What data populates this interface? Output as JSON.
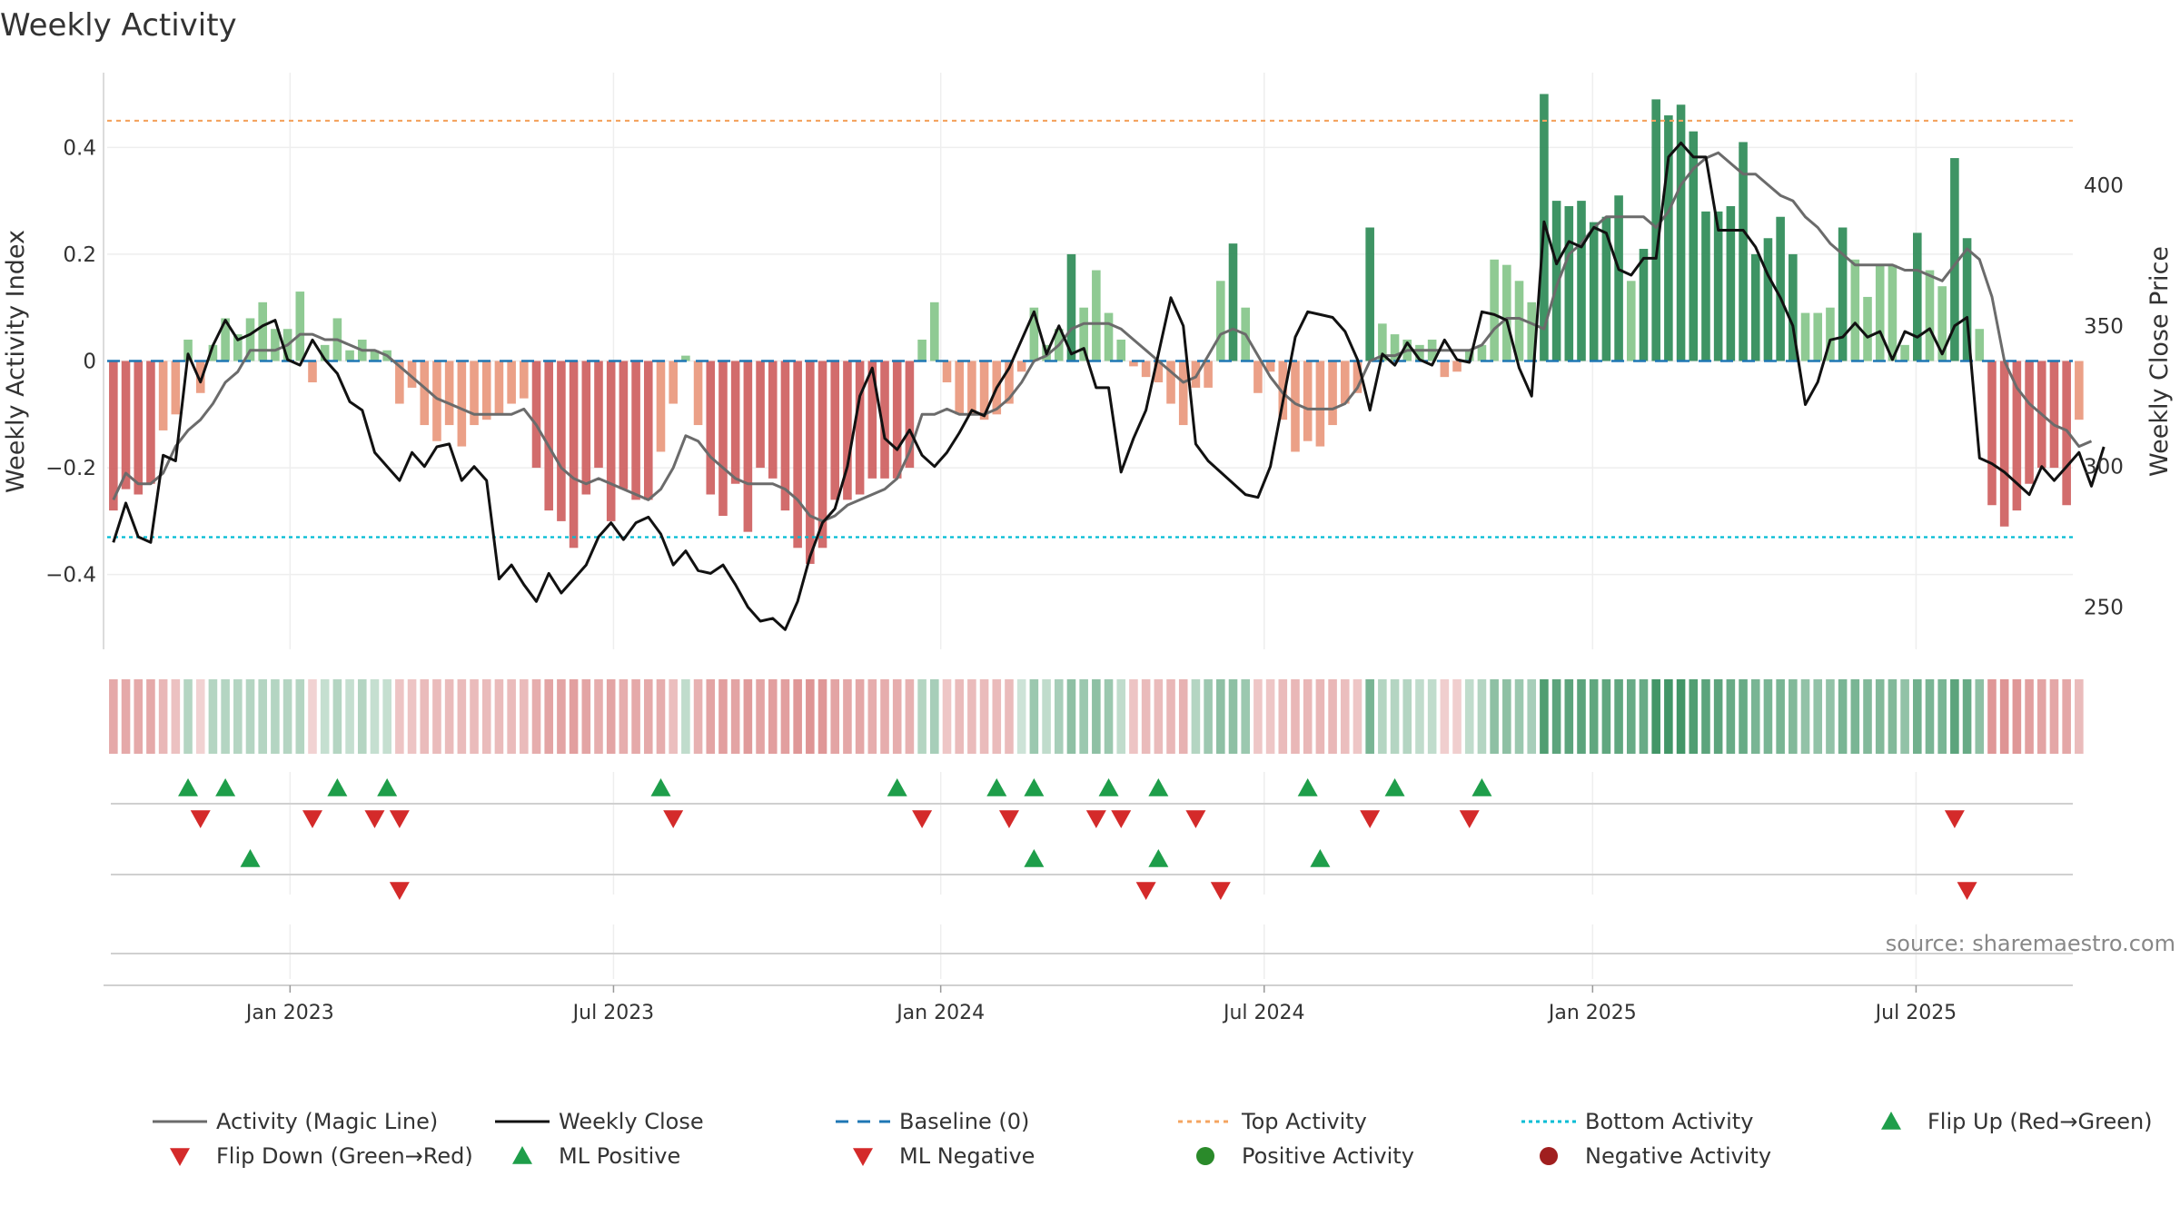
{
  "chart_data": {
    "type": "bar+line",
    "title": "Weekly Activity",
    "ylabel_left": "Weekly Activity Index",
    "ylabel_right": "Weekly Close Price",
    "source": "source: sharemaestro.com",
    "left_ylim": [
      -0.54,
      0.54
    ],
    "left_ticks": [
      {
        "v": 0.4,
        "label": "0.4"
      },
      {
        "v": 0.2,
        "label": "0.2"
      },
      {
        "v": 0,
        "label": "0"
      },
      {
        "v": -0.2,
        "label": "−0.2"
      },
      {
        "v": -0.4,
        "label": "−0.4"
      }
    ],
    "right_ylim": [
      235,
      440
    ],
    "right_ticks": [
      {
        "v": 400,
        "label": "400"
      },
      {
        "v": 350,
        "label": "350"
      },
      {
        "v": 300,
        "label": "300"
      },
      {
        "v": 250,
        "label": "250"
      }
    ],
    "x_range": [
      0,
      158
    ],
    "x_ticks": [
      {
        "week": 14.7,
        "label": "Jan 2023"
      },
      {
        "week": 40.7,
        "label": "Jul 2023"
      },
      {
        "week": 67,
        "label": "Jan 2024"
      },
      {
        "week": 93,
        "label": "Jul 2024"
      },
      {
        "week": 119.4,
        "label": "Jan 2025"
      },
      {
        "week": 145.4,
        "label": "Jul 2025"
      }
    ],
    "top_activity": 0.45,
    "bottom_activity": -0.33,
    "baseline": 0,
    "activity": [
      -0.28,
      -0.24,
      -0.25,
      -0.23,
      -0.13,
      -0.1,
      0.04,
      -0.06,
      0.03,
      0.08,
      0.05,
      0.08,
      0.11,
      0.06,
      0.06,
      0.13,
      -0.04,
      0.03,
      0.08,
      0.02,
      0.04,
      0.02,
      0.02,
      -0.08,
      -0.05,
      -0.12,
      -0.15,
      -0.12,
      -0.16,
      -0.12,
      -0.11,
      -0.1,
      -0.08,
      -0.07,
      -0.2,
      -0.28,
      -0.3,
      -0.35,
      -0.25,
      -0.2,
      -0.3,
      -0.24,
      -0.26,
      -0.26,
      -0.17,
      -0.08,
      0.01,
      -0.12,
      -0.25,
      -0.29,
      -0.23,
      -0.32,
      -0.2,
      -0.22,
      -0.28,
      -0.35,
      -0.38,
      -0.35,
      -0.26,
      -0.26,
      -0.25,
      -0.22,
      -0.22,
      -0.22,
      -0.2,
      0.04,
      0.11,
      -0.04,
      -0.1,
      -0.1,
      -0.11,
      -0.1,
      -0.08,
      -0.02,
      0.1,
      0.03,
      0.06,
      0.2,
      0.1,
      0.17,
      0.09,
      0.04,
      -0.01,
      -0.03,
      -0.04,
      -0.08,
      -0.12,
      -0.05,
      -0.05,
      0.15,
      0.22,
      0.1,
      -0.06,
      -0.02,
      -0.11,
      -0.17,
      -0.15,
      -0.16,
      -0.12,
      -0.08,
      -0.06,
      0.25,
      0.07,
      0.05,
      0.04,
      0.03,
      0.04,
      -0.03,
      -0.02,
      0.02,
      0.03,
      0.19,
      0.18,
      0.15,
      0.11,
      0.5,
      0.3,
      0.29,
      0.3,
      0.26,
      0.27,
      0.31,
      0.15,
      0.21,
      0.49,
      0.46,
      0.48,
      0.43,
      0.28,
      0.28,
      0.29,
      0.41,
      0.2,
      0.23,
      0.27,
      0.2,
      0.09,
      0.09,
      0.1,
      0.25,
      0.19,
      0.12,
      0.18,
      0.18,
      0.03,
      0.24,
      0.17,
      0.14,
      0.38,
      0.23,
      0.06,
      -0.27,
      -0.31,
      -0.28,
      -0.23,
      -0.2,
      -0.2,
      -0.27,
      -0.11
    ],
    "magic_line": [
      -0.26,
      -0.21,
      -0.23,
      -0.23,
      -0.21,
      -0.16,
      -0.13,
      -0.11,
      -0.08,
      -0.04,
      -0.02,
      0.02,
      0.02,
      0.02,
      0.03,
      0.05,
      0.05,
      0.04,
      0.04,
      0.03,
      0.02,
      0.02,
      0.01,
      -0.01,
      -0.03,
      -0.05,
      -0.07,
      -0.08,
      -0.09,
      -0.1,
      -0.1,
      -0.1,
      -0.1,
      -0.09,
      -0.12,
      -0.16,
      -0.2,
      -0.22,
      -0.23,
      -0.22,
      -0.23,
      -0.24,
      -0.25,
      -0.26,
      -0.24,
      -0.2,
      -0.14,
      -0.15,
      -0.18,
      -0.2,
      -0.22,
      -0.23,
      -0.23,
      -0.23,
      -0.24,
      -0.26,
      -0.29,
      -0.3,
      -0.29,
      -0.27,
      -0.26,
      -0.25,
      -0.24,
      -0.22,
      -0.17,
      -0.1,
      -0.1,
      -0.09,
      -0.1,
      -0.1,
      -0.1,
      -0.09,
      -0.07,
      -0.04,
      0.0,
      0.01,
      0.03,
      0.06,
      0.07,
      0.07,
      0.07,
      0.06,
      0.04,
      0.02,
      0.0,
      -0.02,
      -0.04,
      -0.03,
      0.01,
      0.05,
      0.06,
      0.05,
      0.01,
      -0.03,
      -0.06,
      -0.08,
      -0.09,
      -0.09,
      -0.09,
      -0.08,
      -0.05,
      0.0,
      0.01,
      0.01,
      0.02,
      0.02,
      0.02,
      0.02,
      0.02,
      0.02,
      0.03,
      0.06,
      0.08,
      0.08,
      0.07,
      0.06,
      0.14,
      0.2,
      0.22,
      0.25,
      0.27,
      0.27,
      0.27,
      0.27,
      0.25,
      0.28,
      0.33,
      0.36,
      0.38,
      0.39,
      0.37,
      0.35,
      0.35,
      0.33,
      0.31,
      0.3,
      0.27,
      0.25,
      0.22,
      0.2,
      0.18,
      0.18,
      0.18,
      0.18,
      0.17,
      0.17,
      0.16,
      0.15,
      0.18,
      0.21,
      0.19,
      0.12,
      0.0,
      -0.05,
      -0.08,
      -0.1,
      -0.12,
      -0.13,
      -0.16,
      -0.15
    ],
    "weekly_close": [
      273,
      287,
      275,
      273,
      304,
      302,
      340,
      330,
      343,
      352,
      345,
      347,
      350,
      352,
      338,
      336,
      345,
      338,
      333,
      323,
      320,
      305,
      300,
      295,
      305,
      300,
      307,
      308,
      295,
      300,
      295,
      260,
      265,
      258,
      252,
      262,
      255,
      260,
      265,
      275,
      280,
      274,
      280,
      282,
      276,
      265,
      270,
      263,
      262,
      265,
      258,
      250,
      245,
      246,
      242,
      252,
      268,
      280,
      285,
      300,
      325,
      335,
      310,
      306,
      313,
      304,
      300,
      305,
      312,
      320,
      318,
      328,
      335,
      345,
      355,
      340,
      350,
      340,
      342,
      328,
      328,
      298,
      310,
      320,
      340,
      360,
      350,
      308,
      302,
      298,
      294,
      290,
      289,
      300,
      323,
      346,
      355,
      354,
      353,
      348,
      338,
      320,
      340,
      336,
      344,
      338,
      336,
      345,
      338,
      337,
      355,
      354,
      352,
      335,
      325,
      387,
      372,
      380,
      378,
      385,
      383,
      370,
      368,
      374,
      374,
      410,
      415,
      410,
      410,
      384,
      384,
      384,
      378,
      368,
      360,
      350,
      322,
      330,
      345,
      346,
      351,
      346,
      348,
      338,
      348,
      346,
      349,
      340,
      350,
      353,
      303,
      301,
      298,
      294,
      290,
      300,
      295,
      300,
      305,
      293,
      307
    ],
    "fingerprint": [
      -0.29,
      -0.29,
      -0.29,
      -0.29,
      -0.22,
      -0.17,
      0.15,
      -0.08,
      0.15,
      0.15,
      0.15,
      0.15,
      0.15,
      0.15,
      0.15,
      0.15,
      -0.08,
      0.08,
      0.15,
      0.08,
      0.15,
      0.08,
      0.08,
      -0.15,
      -0.15,
      -0.2,
      -0.2,
      -0.2,
      -0.2,
      -0.2,
      -0.2,
      -0.2,
      -0.2,
      -0.2,
      -0.27,
      -0.32,
      -0.32,
      -0.34,
      -0.32,
      -0.27,
      -0.32,
      -0.27,
      -0.29,
      -0.29,
      -0.27,
      -0.18,
      0.1,
      -0.25,
      -0.32,
      -0.34,
      -0.32,
      -0.36,
      -0.32,
      -0.34,
      -0.34,
      -0.38,
      -0.4,
      -0.38,
      -0.32,
      -0.3,
      -0.3,
      -0.27,
      -0.27,
      -0.27,
      -0.25,
      0.15,
      0.2,
      -0.14,
      -0.2,
      -0.2,
      -0.2,
      -0.2,
      -0.2,
      0.05,
      0.25,
      0.1,
      0.2,
      0.3,
      0.25,
      0.3,
      0.25,
      0.1,
      -0.15,
      -0.2,
      -0.2,
      -0.22,
      -0.24,
      0.15,
      0.24,
      0.3,
      0.3,
      0.25,
      -0.14,
      -0.14,
      -0.2,
      -0.22,
      -0.22,
      -0.22,
      -0.22,
      -0.18,
      -0.14,
      0.38,
      0.15,
      0.15,
      0.15,
      0.1,
      0.1,
      -0.1,
      -0.1,
      0.1,
      0.15,
      0.3,
      0.3,
      0.25,
      0.2,
      0.55,
      0.5,
      0.5,
      0.5,
      0.48,
      0.48,
      0.48,
      0.45,
      0.45,
      0.6,
      0.6,
      0.6,
      0.55,
      0.5,
      0.5,
      0.45,
      0.45,
      0.38,
      0.38,
      0.38,
      0.35,
      0.28,
      0.28,
      0.28,
      0.38,
      0.38,
      0.35,
      0.35,
      0.35,
      0.28,
      0.42,
      0.38,
      0.38,
      0.5,
      0.45,
      0.3,
      -0.38,
      -0.4,
      -0.38,
      -0.34,
      -0.32,
      -0.3,
      -0.3,
      -0.2
    ],
    "flip_up": [
      6,
      9,
      18,
      22,
      44,
      63,
      71,
      74,
      80,
      84,
      96,
      103,
      110
    ],
    "flip_down": [
      7,
      16,
      21,
      23,
      45,
      65,
      72,
      79,
      81,
      87,
      101,
      109,
      148
    ],
    "ml_positive": [
      11,
      74,
      84,
      97
    ],
    "ml_negative": [
      23,
      83,
      89,
      149
    ],
    "positive_activity": [],
    "negative_activity": [],
    "legend": [
      "Activity (Magic Line)",
      "Weekly Close",
      "Baseline (0)",
      "Top Activity",
      "Bottom Activity",
      "Flip Up (Red→Green)",
      "Flip Down (Green→Red)",
      "ML Positive",
      "ML Negative",
      "Positive Activity",
      "Negative Activity"
    ]
  },
  "colors": {
    "pos_dark": "#2e8b57",
    "pos_light": "#86c58a",
    "neg_dark": "#cd5c5c",
    "neg_light": "#e9967a",
    "magic": "#6b6b6b",
    "close": "#111111",
    "baseline": "#1f77b4",
    "top": "#f4a460",
    "bottom": "#00bcd4",
    "tri_up": "#1e9e4a",
    "tri_down": "#d42a2a",
    "pos_dot": "#2a8a2a",
    "neg_dot": "#a01f1f",
    "grid": "#eeeeee",
    "axis": "#d0d0d0",
    "text": "#333333",
    "source": "#888888"
  }
}
